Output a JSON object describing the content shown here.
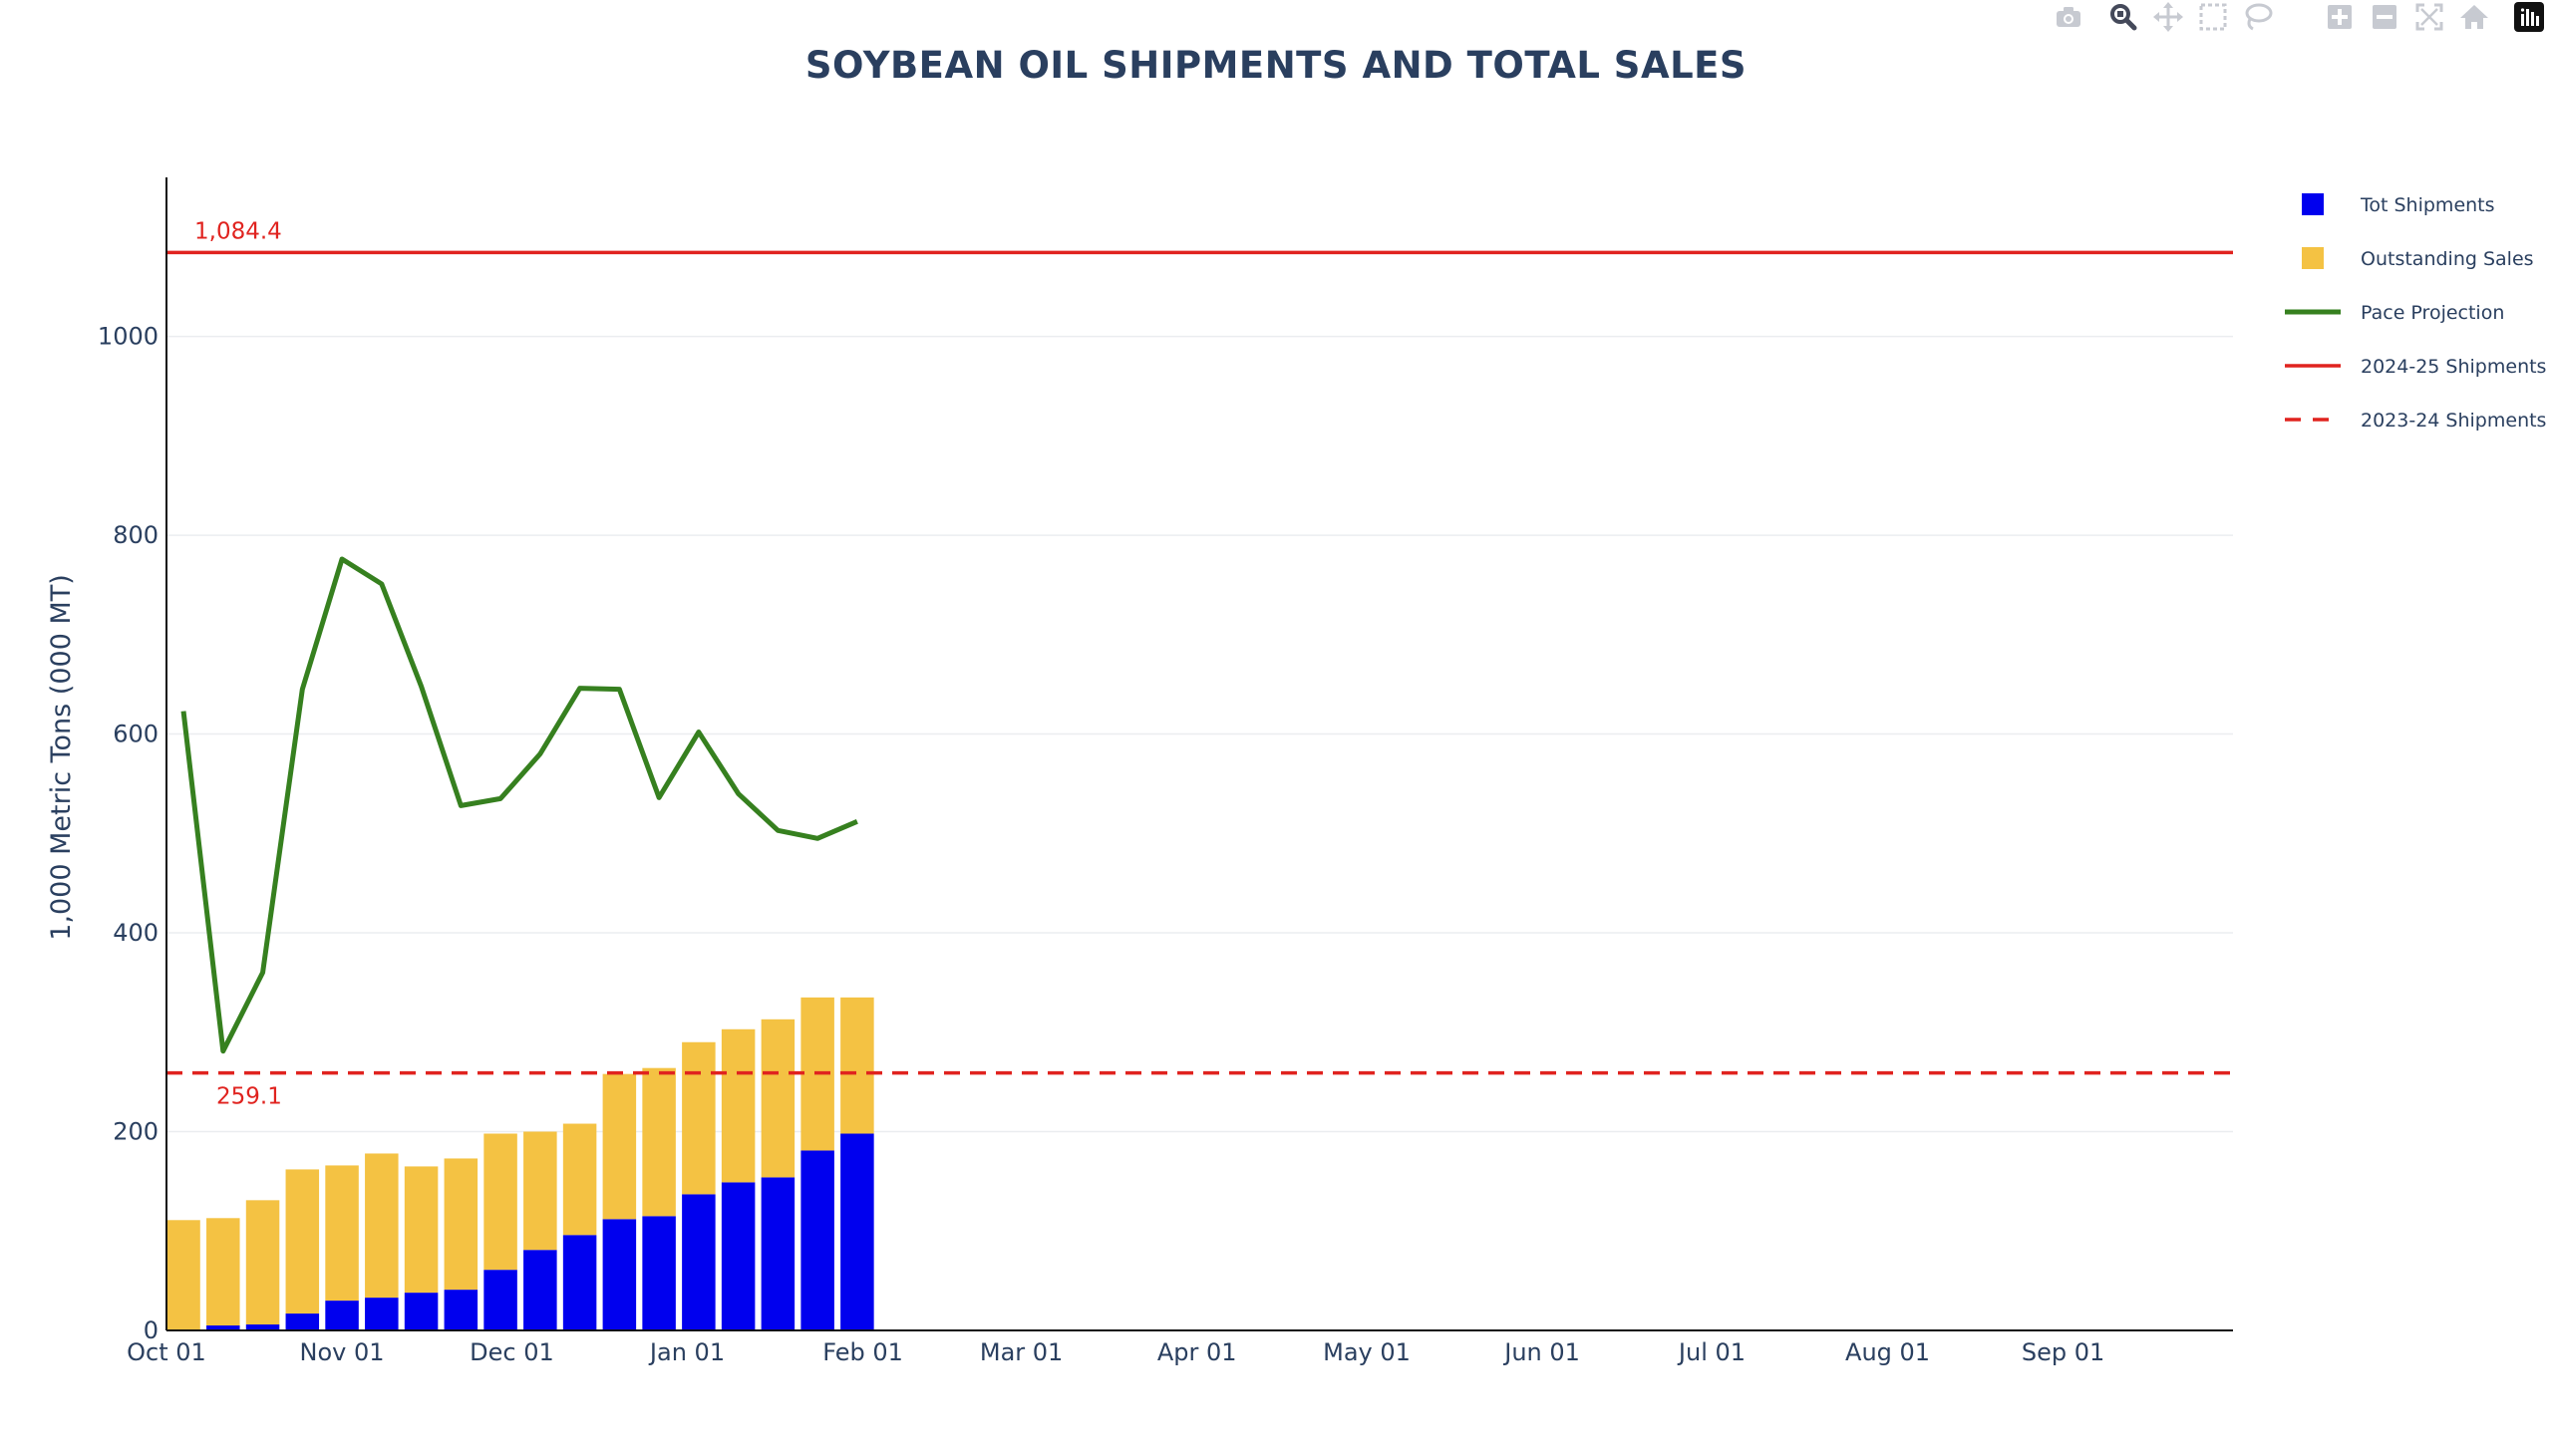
{
  "chart_data": {
    "type": "bar",
    "title": "SOYBEAN OIL SHIPMENTS AND TOTAL SALES",
    "ylabel": "1,000 Metric Tons (000 MT)",
    "xlabel": "",
    "ylim": [
      0,
      1160
    ],
    "y_ticks": [
      0,
      200,
      400,
      600,
      800,
      1000
    ],
    "x_tick_labels": [
      "Oct 01",
      "Nov 01",
      "Dec 01",
      "Jan 01",
      "Feb 01",
      "Mar 01",
      "Apr 01",
      "May 01",
      "Jun 01",
      "Jul 01",
      "Aug 01",
      "Sep 01"
    ],
    "x_tick_days": [
      0,
      31,
      61,
      92,
      123,
      151,
      182,
      212,
      243,
      273,
      304,
      335
    ],
    "x_range_days": [
      0,
      365
    ],
    "barmode": "stack",
    "bar_days": [
      3,
      10,
      17,
      24,
      31,
      38,
      45,
      52,
      59,
      66,
      73,
      80,
      87,
      94,
      101,
      108,
      115,
      122
    ],
    "series": [
      {
        "name": "Tot Shipments",
        "kind": "bar",
        "color": "#0000ee",
        "values": [
          1,
          5,
          6,
          17,
          30,
          33,
          38,
          41,
          61,
          81,
          96,
          112,
          115,
          137,
          149,
          154,
          181,
          198
        ]
      },
      {
        "name": "Outstanding Sales",
        "kind": "bar",
        "color": "#f4c243",
        "values": [
          110,
          108,
          125,
          145,
          136,
          145,
          127,
          132,
          137,
          119,
          112,
          146,
          149,
          153,
          154,
          159,
          154,
          137
        ]
      },
      {
        "name": "Pace Projection",
        "kind": "line",
        "color": "#36801f",
        "values": [
          623,
          281,
          360,
          645,
          776,
          751,
          648,
          528,
          535,
          580,
          646,
          645,
          536,
          602,
          540,
          503,
          495,
          512
        ]
      },
      {
        "name": "2024-25 Shipments",
        "kind": "hline",
        "color": "#e0231f",
        "value": 1084.4,
        "label": "1,084.4"
      },
      {
        "name": "2023-24 Shipments",
        "kind": "hline-dash",
        "color": "#e0231f",
        "value": 259.1,
        "label": "259.1"
      }
    ],
    "grid": true,
    "legend_position": "right"
  },
  "modebar": {
    "icons": [
      "camera-icon",
      "zoom-icon",
      "pan-icon",
      "box-select-icon",
      "lasso-select-icon",
      "zoom-in-icon",
      "zoom-out-icon",
      "autoscale-icon",
      "reset-axes-icon",
      "plotly-logo-icon"
    ]
  }
}
